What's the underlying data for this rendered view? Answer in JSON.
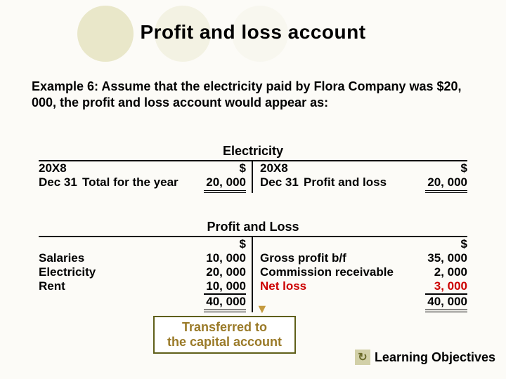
{
  "circles": {
    "colors": [
      "#e9e7c9",
      "#f3f2e3",
      "#f8f7ef"
    ]
  },
  "title": "Profit and loss account",
  "example": "Example 6: Assume that the electricity paid by Flora Company was  $20, 000, the profit and loss account would appear as:",
  "elec": {
    "title": "Electricity",
    "left_year": "20X8",
    "left_date": "Dec  31",
    "left_desc": "Total for the year",
    "left_amt": "20, 000",
    "right_year": "20X8",
    "right_date": "Dec  31",
    "right_desc": "Profit and loss",
    "right_amt": "20, 000",
    "dollar": "$"
  },
  "pl": {
    "title": "Profit and Loss",
    "dollar": "$",
    "left": {
      "r1_desc": "Salaries",
      "r1_amt": "10, 000",
      "r2_desc": "Electricity",
      "r2_amt": "20, 000",
      "r3_desc": "Rent",
      "r3_amt": "10, 000",
      "total": "40, 000"
    },
    "right": {
      "r1_desc": "Gross profit b/f",
      "r1_amt": "35, 000",
      "r2_desc": "Commission receivable",
      "r2_amt": "2, 000",
      "r3_desc": "Net loss",
      "r3_amt": "3, 000",
      "total": "40, 000"
    }
  },
  "transfer": {
    "l1": "Transferred  to",
    "l2": "the capital  account"
  },
  "lo": {
    "icon": "↻",
    "label": "Learning Objectives"
  },
  "colors": {
    "transfer_text": "#9a7a28",
    "net_loss_red": "#cc0000",
    "box_border": "#5f5f19"
  }
}
